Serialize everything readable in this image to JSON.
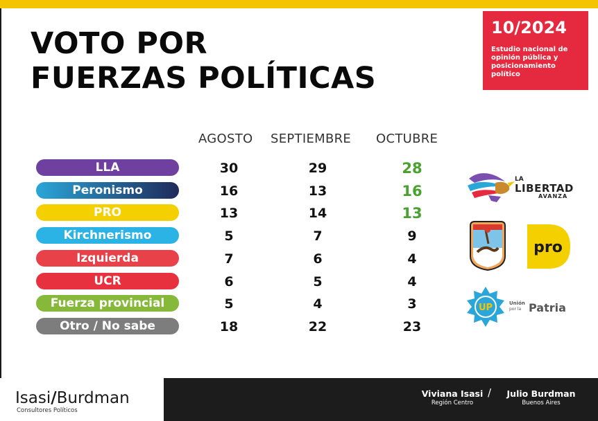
{
  "header": {
    "title_line1": "VOTO POR",
    "title_line2": "FUERZAS POLÍTICAS",
    "date": "10/2024",
    "description": "Estudio nacional de opinión pública y posicionamiento político"
  },
  "colors": {
    "accent_yellow": "#f5c400",
    "date_box": "#e5293f",
    "highlight_green": "#4aa12f",
    "footer_dark": "#1c1c1c"
  },
  "chart_data": {
    "type": "table",
    "columns": [
      "AGOSTO",
      "SEPTIEMBRE",
      "OCTUBRE"
    ],
    "rows": [
      {
        "label": "LLA",
        "color": "#7040a0",
        "values": [
          30,
          29,
          28
        ],
        "highlight_last": true
      },
      {
        "label": "Peronismo",
        "gradient": [
          "#2aa6d8",
          "#1f2a5a"
        ],
        "values": [
          16,
          13,
          16
        ],
        "highlight_last": true
      },
      {
        "label": "PRO",
        "color": "#f5d000",
        "values": [
          13,
          14,
          13
        ],
        "highlight_last": true
      },
      {
        "label": "Kirchnerismo",
        "color": "#2bb3e6",
        "values": [
          5,
          7,
          9
        ],
        "highlight_last": false
      },
      {
        "label": "Izquierda",
        "color": "#e8414a",
        "values": [
          7,
          6,
          4
        ],
        "highlight_last": false
      },
      {
        "label": "UCR",
        "color": "#e8313e",
        "values": [
          6,
          5,
          4
        ],
        "highlight_last": false
      },
      {
        "label": "Fuerza provincial",
        "color": "#86b83a",
        "values": [
          5,
          4,
          3
        ],
        "highlight_last": false
      },
      {
        "label": "Otro / No sabe",
        "color": "#7d7d7d",
        "values": [
          18,
          22,
          23
        ],
        "highlight_last": false
      }
    ]
  },
  "logos": {
    "lla": {
      "line1": "LA",
      "line2": "LIBERTAD",
      "line3": "AVANZA"
    },
    "pro": "pro",
    "up": {
      "badge": "UP",
      "small1": "Unión",
      "small2": "por la",
      "big": "Patria"
    }
  },
  "footer": {
    "brand_left": "Isasi",
    "brand_slash": "/",
    "brand_right": "Burdman",
    "brand_sub": "Consultores Políticos",
    "author1_name": "Viviana Isasi",
    "author1_role": "Región Centro",
    "separator": "/",
    "author2_name": "Julio Burdman",
    "author2_role": "Buenos Aires"
  }
}
